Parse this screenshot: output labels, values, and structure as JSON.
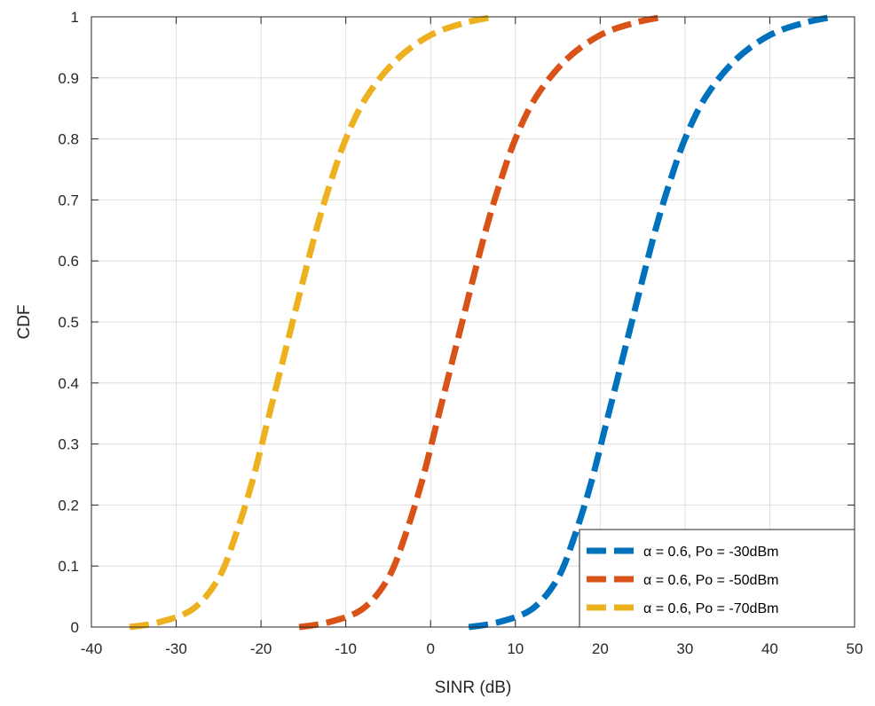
{
  "chart_data": {
    "type": "line",
    "xlabel": "SINR (dB)",
    "ylabel": "CDF",
    "xlim": [
      -40,
      50
    ],
    "ylim": [
      0,
      1
    ],
    "xticks": [
      -40,
      -30,
      -20,
      -10,
      0,
      10,
      20,
      30,
      40,
      50
    ],
    "yticks": [
      0,
      0.1,
      0.2,
      0.3,
      0.4,
      0.5,
      0.6,
      0.7,
      0.8,
      0.9,
      1
    ],
    "grid": true,
    "legend_position": "bottom-right",
    "series": [
      {
        "name": "α = 0.6, Po = -30dBm",
        "color": "#0072BD",
        "line_style": "dashed",
        "x": [
          4.5,
          8,
          12,
          15,
          17,
          19,
          21,
          23,
          25,
          26.5,
          28,
          30,
          32.5,
          36,
          40,
          44,
          47.5
        ],
        "y": [
          0,
          0.008,
          0.03,
          0.08,
          0.15,
          0.24,
          0.35,
          0.46,
          0.57,
          0.65,
          0.72,
          0.8,
          0.87,
          0.93,
          0.97,
          0.99,
          1.0
        ]
      },
      {
        "name": "α = 0.6, Po = -50dBm",
        "color": "#D95319",
        "line_style": "dashed",
        "x": [
          -15.5,
          -12,
          -8,
          -5,
          -3,
          -1,
          1,
          3,
          5,
          6.5,
          8,
          10,
          12.5,
          16,
          20,
          24,
          27.5
        ],
        "y": [
          0,
          0.008,
          0.03,
          0.08,
          0.15,
          0.24,
          0.35,
          0.46,
          0.57,
          0.65,
          0.72,
          0.8,
          0.87,
          0.93,
          0.97,
          0.99,
          1.0
        ]
      },
      {
        "name": "α = 0.6, Po = -70dBm",
        "color": "#EDB120",
        "line_style": "dashed",
        "x": [
          -35.5,
          -32,
          -28,
          -25,
          -23,
          -21,
          -19,
          -17,
          -15,
          -13.5,
          -12,
          -10,
          -7.5,
          -4,
          0,
          4,
          7.5
        ],
        "y": [
          0,
          0.008,
          0.03,
          0.08,
          0.15,
          0.24,
          0.35,
          0.46,
          0.57,
          0.65,
          0.72,
          0.8,
          0.87,
          0.93,
          0.97,
          0.99,
          1.0
        ]
      }
    ]
  }
}
